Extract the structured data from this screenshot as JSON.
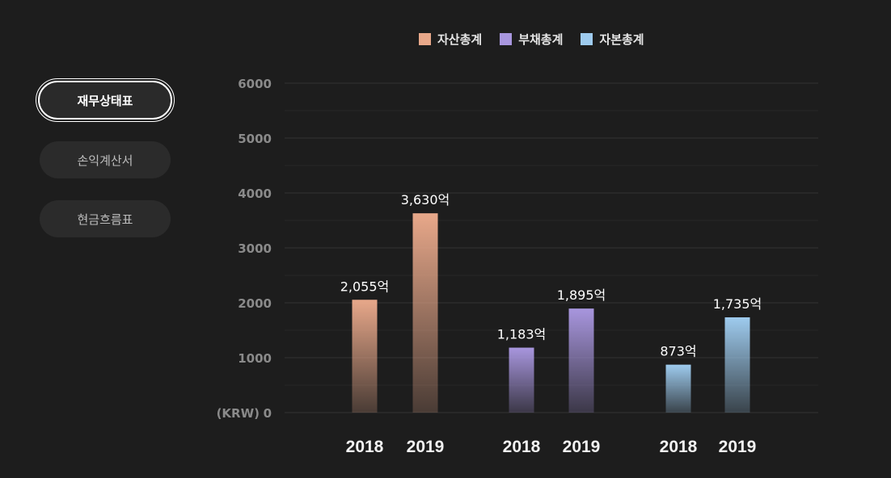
{
  "sidebar": {
    "tabs": [
      {
        "label": "재무상태표",
        "active": true
      },
      {
        "label": "손익계산서",
        "active": false
      },
      {
        "label": "현금흐름표",
        "active": false
      }
    ]
  },
  "chart_data": {
    "type": "bar",
    "title": "",
    "ylabel": "(KRW)",
    "ylim": [
      0,
      6000
    ],
    "yticks": [
      0,
      1000,
      2000,
      3000,
      4000,
      5000,
      6000
    ],
    "legend": [
      {
        "name": "자산총계",
        "color": "#e8a88a"
      },
      {
        "name": "부채총계",
        "color": "#a896de"
      },
      {
        "name": "자본총계",
        "color": "#9ecbee"
      }
    ],
    "groups": [
      {
        "series": "자산총계",
        "color": "#e8a88a",
        "bars": [
          {
            "year": "2018",
            "value": 2055,
            "label": "2,055억"
          },
          {
            "year": "2019",
            "value": 3630,
            "label": "3,630억"
          }
        ]
      },
      {
        "series": "부채총계",
        "color": "#a896de",
        "bars": [
          {
            "year": "2018",
            "value": 1183,
            "label": "1,183억"
          },
          {
            "year": "2019",
            "value": 1895,
            "label": "1,895억"
          }
        ]
      },
      {
        "series": "자본총계",
        "color": "#9ecbee",
        "bars": [
          {
            "year": "2018",
            "value": 873,
            "label": "873억"
          },
          {
            "year": "2019",
            "value": 1735,
            "label": "1,735억"
          }
        ]
      }
    ]
  }
}
